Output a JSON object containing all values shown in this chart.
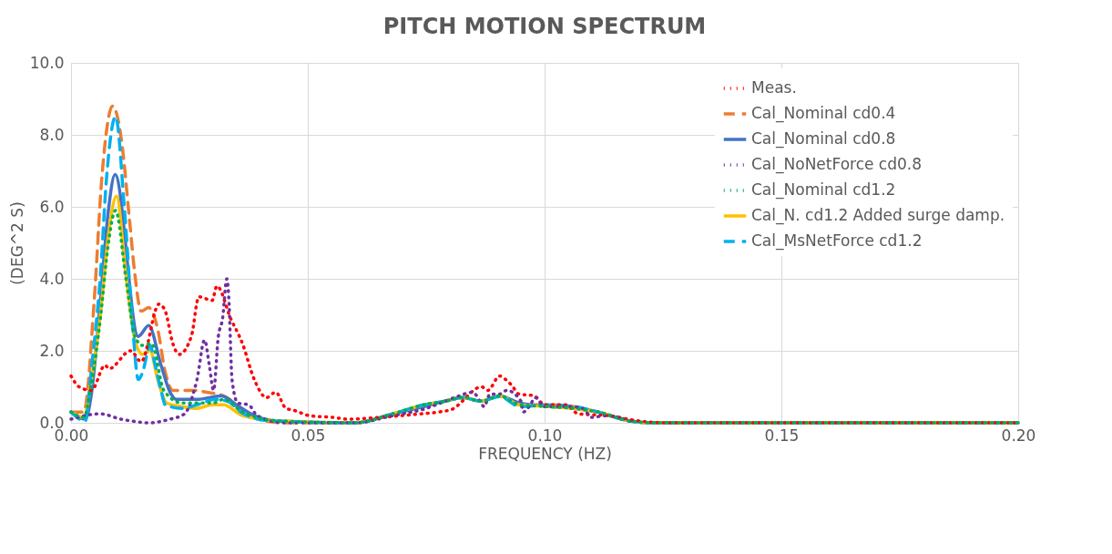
{
  "chart_data": {
    "type": "line",
    "title": "PITCH MOTION SPECTRUM",
    "xlabel": "FREQUENCY (HZ)",
    "ylabel": "(DEG^2 S)",
    "xlim": [
      0,
      0.2
    ],
    "xticks": [
      {
        "value": 0,
        "label": "0.00"
      },
      {
        "value": 0.05,
        "label": "0.05"
      },
      {
        "value": 0.1,
        "label": "0.10"
      },
      {
        "value": 0.15,
        "label": "0.15"
      },
      {
        "value": 0.2,
        "label": "0.20"
      }
    ],
    "ylim": [
      0,
      10
    ],
    "yticks": [
      {
        "value": 0,
        "label": "0.0"
      },
      {
        "value": 2,
        "label": "2.0"
      },
      {
        "value": 4,
        "label": "4.0"
      },
      {
        "value": 6,
        "label": "6.0"
      },
      {
        "value": 8,
        "label": "8.0"
      },
      {
        "value": 10,
        "label": "10.0"
      }
    ],
    "grid": true,
    "legend": "top right",
    "marker": "none",
    "series": [
      {
        "name": "Meas.",
        "color": "#ff0000",
        "line_style": "dotted",
        "x": [
          0,
          0.0017,
          0.0043,
          0.0072,
          0.008,
          0.0126,
          0.0148,
          0.0186,
          0.0199,
          0.0215,
          0.0228,
          0.0254,
          0.027,
          0.0298,
          0.0308,
          0.0337,
          0.0362,
          0.0387,
          0.0413,
          0.0432,
          0.0454,
          0.047,
          0.0503,
          0.0553,
          0.0585,
          0.065,
          0.0739,
          0.0777,
          0.0809,
          0.0822,
          0.0867,
          0.088,
          0.0905,
          0.0918,
          0.093,
          0.0946,
          0.0978,
          0.1,
          0.1045,
          0.1071,
          0.1134,
          0.12,
          0.125,
          0.2
        ],
        "values": [
          1.3,
          1.0,
          0.9,
          1.6,
          1.5,
          2.0,
          1.7,
          3.3,
          3.1,
          2.2,
          1.9,
          2.4,
          3.5,
          3.4,
          3.8,
          2.9,
          2.2,
          1.2,
          0.7,
          0.85,
          0.4,
          0.35,
          0.2,
          0.15,
          0.1,
          0.15,
          0.25,
          0.3,
          0.4,
          0.55,
          1.0,
          0.9,
          1.3,
          1.2,
          1.05,
          0.8,
          0.75,
          0.5,
          0.5,
          0.25,
          0.2,
          0.05,
          0,
          0
        ]
      },
      {
        "name": "Cal_Nominal cd0.4",
        "color": "#ed7d31",
        "line_style": "dashed",
        "x": [
          0,
          0.0027,
          0.0049,
          0.0065,
          0.0088,
          0.0107,
          0.0123,
          0.0135,
          0.0148,
          0.0164,
          0.0183,
          0.0199,
          0.0215,
          0.026,
          0.0285,
          0.0322,
          0.034,
          0.0365,
          0.045,
          0.06,
          0.068,
          0.0745,
          0.079,
          0.0828,
          0.0866,
          0.0905,
          0.0947,
          0.1011,
          0.1062,
          0.1113,
          0.118,
          0.123,
          0.2
        ],
        "values": [
          0.3,
          0.3,
          3.4,
          6.8,
          8.8,
          7.8,
          5.7,
          4.1,
          3.1,
          3.2,
          2.6,
          1.4,
          0.9,
          0.9,
          0.85,
          0.75,
          0.6,
          0.25,
          0,
          0,
          0.25,
          0.5,
          0.6,
          0.7,
          0.6,
          0.75,
          0.5,
          0.5,
          0.45,
          0.3,
          0.05,
          0,
          0
        ]
      },
      {
        "name": "Cal_Nominal cd0.8",
        "color": "#4472c4",
        "line_style": "solid",
        "x": [
          0,
          0.003,
          0.0043,
          0.0062,
          0.0078,
          0.0093,
          0.0142,
          0.0164,
          0.019,
          0.0209,
          0.0222,
          0.0266,
          0.0317,
          0.0349,
          0.0387,
          0.0437,
          0.06,
          0.068,
          0.0745,
          0.079,
          0.0828,
          0.0866,
          0.0905,
          0.0947,
          0.1011,
          0.1062,
          0.1113,
          0.118,
          0.123,
          0.2
        ],
        "values": [
          0.3,
          0.1,
          0.8,
          3.4,
          5.8,
          6.9,
          2.4,
          2.7,
          1.6,
          0.85,
          0.65,
          0.65,
          0.75,
          0.5,
          0.2,
          0.05,
          0,
          0.25,
          0.45,
          0.6,
          0.7,
          0.6,
          0.75,
          0.55,
          0.45,
          0.4,
          0.3,
          0.05,
          0,
          0
        ]
      },
      {
        "name": "Cal_NoNetForce cd0.8",
        "color": "#7030a0",
        "line_style": "dotted",
        "x": [
          0,
          0.0061,
          0.0106,
          0.0128,
          0.0165,
          0.0209,
          0.024,
          0.026,
          0.0266,
          0.0282,
          0.0292,
          0.0301,
          0.0311,
          0.032,
          0.0329,
          0.0333,
          0.034,
          0.0352,
          0.0375,
          0.0393,
          0.045,
          0.06,
          0.068,
          0.075,
          0.079,
          0.082,
          0.0848,
          0.0866,
          0.0872,
          0.0885,
          0.0905,
          0.092,
          0.095,
          0.0955,
          0.097,
          0.098,
          0.1,
          0.105,
          0.108,
          0.11,
          0.113,
          0.118
        ],
        "values": [
          0.1,
          0.25,
          0.1,
          0.05,
          0,
          0.1,
          0.25,
          0.9,
          1.2,
          2.3,
          1.6,
          0.9,
          2.4,
          2.9,
          4.0,
          3.5,
          1.2,
          0.55,
          0.5,
          0.2,
          0,
          0,
          0.2,
          0.4,
          0.6,
          0.75,
          0.85,
          0.55,
          0.45,
          0.8,
          0.8,
          0.9,
          0.6,
          0.3,
          0.5,
          0.7,
          0.45,
          0.45,
          0.4,
          0.15,
          0.2,
          0.05
        ]
      },
      {
        "name": "Cal_Nominal cd1.2",
        "color": "#00b050",
        "line_style": "dotted",
        "x": [
          0,
          0.0027,
          0.0043,
          0.0062,
          0.0078,
          0.0094,
          0.0116,
          0.0135,
          0.0151,
          0.017,
          0.0196,
          0.0234,
          0.03,
          0.0322,
          0.0362,
          0.044,
          0.06,
          0.068,
          0.0745,
          0.079,
          0.0828,
          0.0866,
          0.0905,
          0.0947,
          0.1011,
          0.1062,
          0.1113,
          0.118,
          0.123,
          0.2
        ],
        "values": [
          0.3,
          0.15,
          1.1,
          2.9,
          4.9,
          5.9,
          4.0,
          2.4,
          2.15,
          2.2,
          0.9,
          0.55,
          0.55,
          0.65,
          0.3,
          0.05,
          0,
          0.25,
          0.5,
          0.6,
          0.7,
          0.6,
          0.75,
          0.5,
          0.45,
          0.4,
          0.3,
          0.05,
          0,
          0
        ]
      },
      {
        "name": "Cal_N. cd1.2 Added surge damp.",
        "color": "#ffc000",
        "line_style": "solid",
        "x": [
          0,
          0.0027,
          0.0043,
          0.0062,
          0.0078,
          0.0096,
          0.0116,
          0.0135,
          0.0151,
          0.0167,
          0.0183,
          0.0202,
          0.0234,
          0.0266,
          0.0298,
          0.0322,
          0.0362,
          0.044,
          0.06,
          0.068,
          0.0745,
          0.079,
          0.0828,
          0.0866,
          0.0905,
          0.0947,
          0.1011,
          0.1062,
          0.1113,
          0.118,
          0.123,
          0.2
        ],
        "values": [
          0.3,
          0.15,
          1.2,
          3.0,
          5.1,
          6.3,
          4.1,
          2.3,
          1.9,
          2.0,
          1.2,
          0.55,
          0.45,
          0.4,
          0.5,
          0.5,
          0.2,
          0.05,
          0,
          0.25,
          0.5,
          0.6,
          0.7,
          0.6,
          0.75,
          0.5,
          0.45,
          0.4,
          0.3,
          0.05,
          0,
          0
        ]
      },
      {
        "name": "Cal_MsNetForce cd1.2",
        "color": "#00b0f0",
        "line_style": "dashed",
        "x": [
          0,
          0.003,
          0.0043,
          0.0062,
          0.0075,
          0.0094,
          0.0113,
          0.0129,
          0.0142,
          0.0151,
          0.0167,
          0.0176,
          0.019,
          0.0199,
          0.0234,
          0.0266,
          0.0305,
          0.033,
          0.0362,
          0.0424,
          0.06,
          0.068,
          0.0745,
          0.079,
          0.0828,
          0.0866,
          0.0905,
          0.0947,
          0.1011,
          0.1062,
          0.1113,
          0.118,
          0.123,
          0.2
        ],
        "values": [
          0.3,
          0.05,
          1.5,
          4.1,
          6.8,
          8.5,
          5.9,
          2.9,
          1.2,
          1.4,
          2.15,
          1.7,
          0.9,
          0.5,
          0.4,
          0.5,
          0.65,
          0.6,
          0.27,
          0.05,
          0,
          0.25,
          0.5,
          0.6,
          0.7,
          0.6,
          0.73,
          0.45,
          0.5,
          0.45,
          0.3,
          0.05,
          0,
          0
        ]
      }
    ]
  }
}
